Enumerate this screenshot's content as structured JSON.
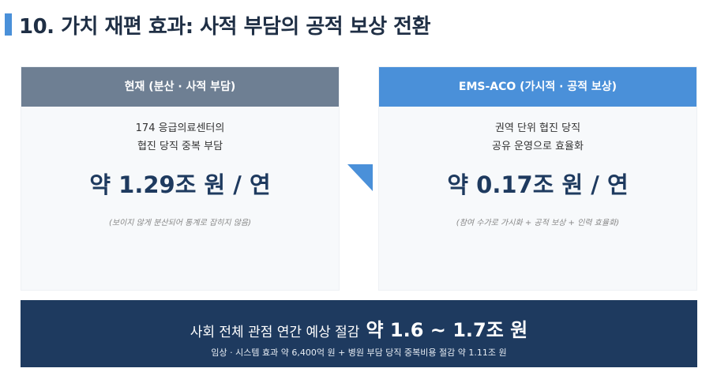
{
  "title": "10. 가치 재편 효과: 사적 부담의 공적 보상 전환",
  "colors": {
    "accent": "#4a90d9",
    "current_header": "#6e7f93",
    "banner": "#1e3a5f"
  },
  "current": {
    "header": "현재 (분산 · 사적 부담)",
    "desc1": "174 응급의료센터의",
    "desc2": "협진 당직 중복 부담",
    "value": "약 1.29조 원 / 연",
    "note": "(보이지 않게 분산되어 통계로 잡히지 않음)"
  },
  "proposed": {
    "header": "EMS-ACO (가시적 · 공적 보상)",
    "desc1": "권역 단위 협진 당직",
    "desc2": "공유 운영으로 효율화",
    "value": "약 0.17조 원 / 연",
    "note": "(참여 수가로 가시화 + 공적 보상 + 인력 효율화)"
  },
  "banner": {
    "label": "사회 전체 관점 연간 예상 절감",
    "value": "약 1.6 ~ 1.7조 원",
    "detail": "임상 · 시스템 효과 약 6,400억 원 + 병원 부담 당직 중복비용 절감 약 1.11조 원"
  }
}
